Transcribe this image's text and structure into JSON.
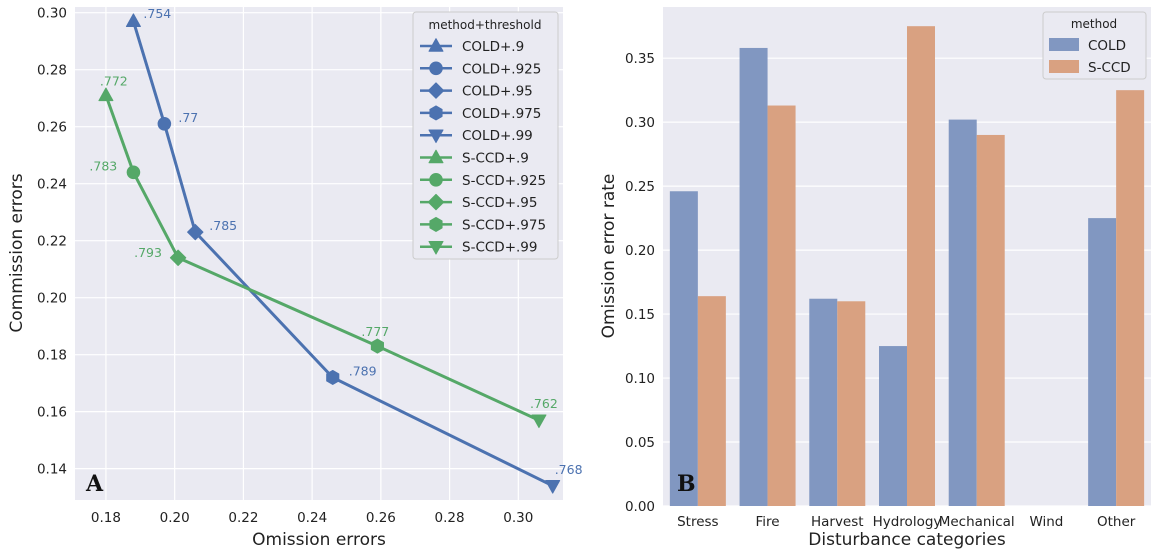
{
  "chart_data": [
    {
      "type": "line",
      "panel_label": "A",
      "xlabel": "Omission errors",
      "ylabel": "Commission errors",
      "xlim": [
        0.171,
        0.313
      ],
      "ylim": [
        0.129,
        0.302
      ],
      "xticks": [
        "0.18",
        "0.20",
        "0.22",
        "0.24",
        "0.26",
        "0.28",
        "0.30"
      ],
      "xtick_values": [
        0.18,
        0.2,
        0.22,
        0.24,
        0.26,
        0.28,
        0.3
      ],
      "yticks": [
        "0.14",
        "0.16",
        "0.18",
        "0.20",
        "0.22",
        "0.24",
        "0.26",
        "0.28",
        "0.30"
      ],
      "ytick_values": [
        0.14,
        0.16,
        0.18,
        0.2,
        0.22,
        0.24,
        0.26,
        0.28,
        0.3
      ],
      "grid": true,
      "legend_position": "top-right",
      "legend_title": "method+threshold",
      "series": [
        {
          "method": "COLD",
          "color": "#4c72b0",
          "points": [
            {
              "legend": "COLD+.9",
              "marker": "triangle-up",
              "x": 0.188,
              "y": 0.297,
              "label": ".754"
            },
            {
              "legend": "COLD+.925",
              "marker": "circle",
              "x": 0.197,
              "y": 0.261,
              "label": ".77"
            },
            {
              "legend": "COLD+.95",
              "marker": "diamond",
              "x": 0.206,
              "y": 0.223,
              "label": ".785"
            },
            {
              "legend": "COLD+.975",
              "marker": "hexagon",
              "x": 0.246,
              "y": 0.172,
              "label": ".789"
            },
            {
              "legend": "COLD+.99",
              "marker": "triangle-down",
              "x": 0.31,
              "y": 0.134,
              "label": ".768"
            }
          ]
        },
        {
          "method": "S-CCD",
          "color": "#55a868",
          "points": [
            {
              "legend": "S-CCD+.9",
              "marker": "triangle-up",
              "x": 0.18,
              "y": 0.271,
              "label": ".772"
            },
            {
              "legend": "S-CCD+.925",
              "marker": "circle",
              "x": 0.188,
              "y": 0.244,
              "label": ".783"
            },
            {
              "legend": "S-CCD+.95",
              "marker": "diamond",
              "x": 0.201,
              "y": 0.214,
              "label": ".793"
            },
            {
              "legend": "S-CCD+.975",
              "marker": "hexagon",
              "x": 0.259,
              "y": 0.183,
              "label": ".777"
            },
            {
              "legend": "S-CCD+.99",
              "marker": "triangle-down",
              "x": 0.306,
              "y": 0.157,
              "label": ".762"
            }
          ]
        }
      ]
    },
    {
      "type": "bar",
      "panel_label": "B",
      "xlabel": "Disturbance categories",
      "ylabel": "Omission error rate",
      "ylim": [
        0,
        0.39
      ],
      "yticks": [
        "0.00",
        "0.05",
        "0.10",
        "0.15",
        "0.20",
        "0.25",
        "0.30",
        "0.35"
      ],
      "ytick_values": [
        0,
        0.05,
        0.1,
        0.15,
        0.2,
        0.25,
        0.3,
        0.35
      ],
      "grid": true,
      "legend_position": "top-right",
      "legend_title": "method",
      "categories": [
        "Stress",
        "Fire",
        "Harvest",
        "Hydrology",
        "Mechanical",
        "Wind",
        "Other"
      ],
      "series": [
        {
          "name": "COLD",
          "color": "#8197c1",
          "values": [
            0.246,
            0.358,
            0.162,
            0.125,
            0.302,
            0.0,
            0.225
          ]
        },
        {
          "name": "S-CCD",
          "color": "#d9a181",
          "values": [
            0.164,
            0.313,
            0.16,
            0.375,
            0.29,
            0.0,
            0.325
          ]
        }
      ]
    }
  ]
}
